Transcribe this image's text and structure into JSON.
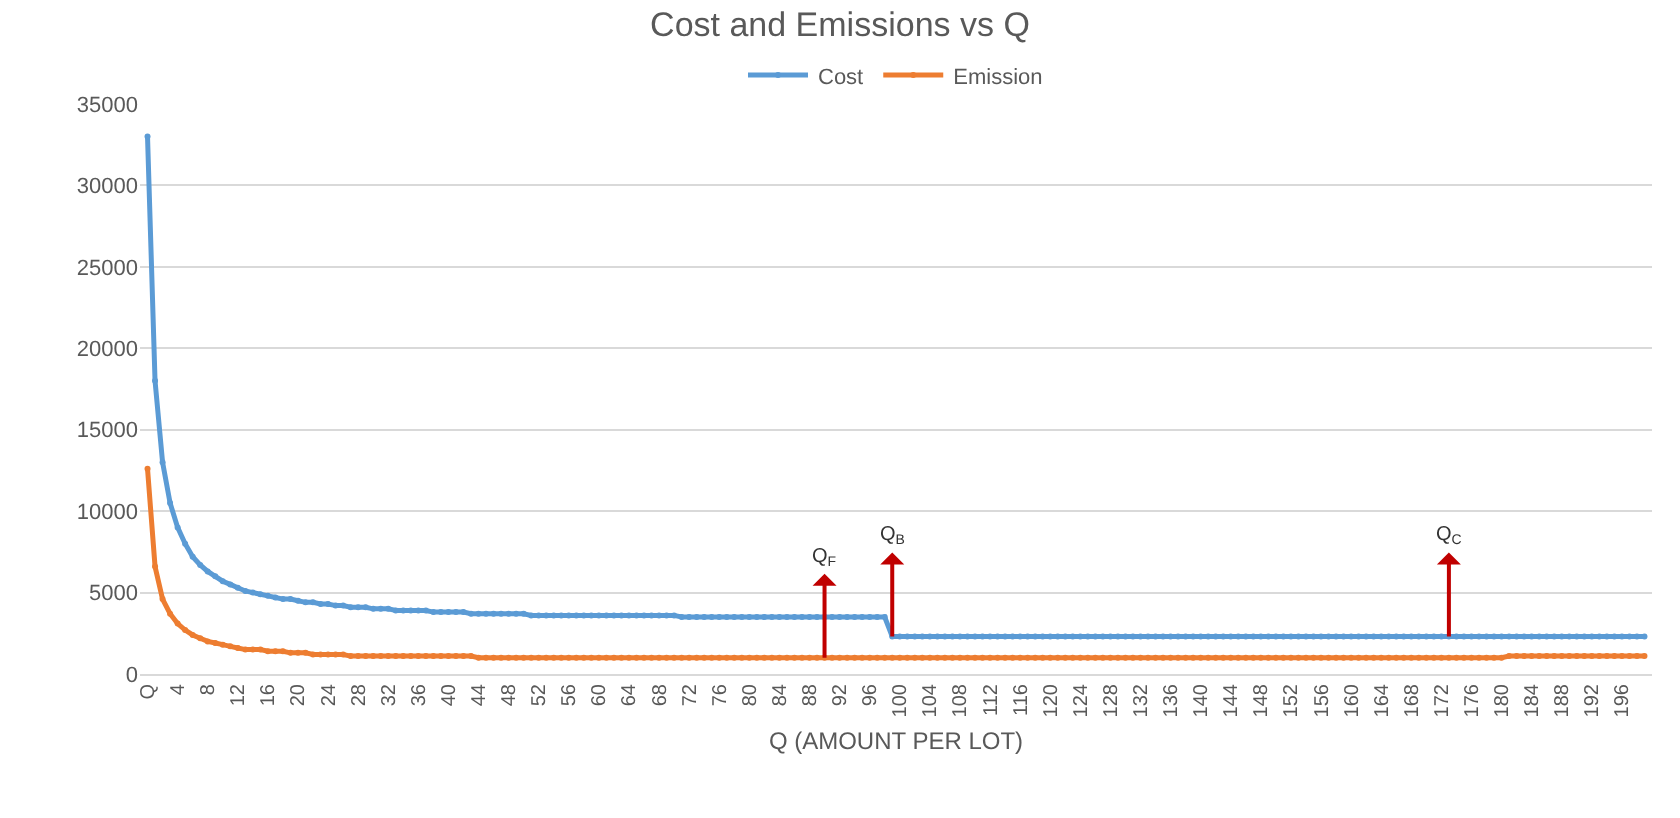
{
  "chart_data": {
    "type": "line",
    "title": "Cost and Emissions vs Q",
    "xlabel": "Q (AMOUNT PER LOT)",
    "x": [
      0,
      1,
      2,
      3,
      4,
      5,
      6,
      7,
      8,
      9,
      10,
      11,
      12,
      13,
      14,
      15,
      16,
      17,
      18,
      19,
      20,
      21,
      22,
      23,
      24,
      25,
      26,
      27,
      28,
      29,
      30,
      31,
      32,
      33,
      34,
      35,
      36,
      37,
      38,
      39,
      40,
      41,
      42,
      43,
      44,
      45,
      46,
      47,
      48,
      49,
      50,
      51,
      52,
      53,
      54,
      55,
      56,
      57,
      58,
      59,
      60,
      61,
      62,
      63,
      64,
      65,
      66,
      67,
      68,
      69,
      70,
      71,
      72,
      73,
      74,
      75,
      76,
      77,
      78,
      79,
      80,
      81,
      82,
      83,
      84,
      85,
      86,
      87,
      88,
      89,
      90,
      91,
      92,
      93,
      94,
      95,
      96,
      97,
      98,
      99,
      100,
      101,
      102,
      103,
      104,
      105,
      106,
      107,
      108,
      109,
      110,
      111,
      112,
      113,
      114,
      115,
      116,
      117,
      118,
      119,
      120,
      121,
      122,
      123,
      124,
      125,
      126,
      127,
      128,
      129,
      130,
      131,
      132,
      133,
      134,
      135,
      136,
      137,
      138,
      139,
      140,
      141,
      142,
      143,
      144,
      145,
      146,
      147,
      148,
      149,
      150,
      151,
      152,
      153,
      154,
      155,
      156,
      157,
      158,
      159,
      160,
      161,
      162,
      163,
      164,
      165,
      166,
      167,
      168,
      169,
      170,
      171,
      172,
      173,
      174,
      175,
      176,
      177,
      178,
      179,
      180,
      181,
      182,
      183,
      184,
      185,
      186,
      187,
      188,
      189,
      190,
      191,
      192,
      193,
      194,
      195,
      196,
      197,
      198,
      199
    ],
    "series": [
      {
        "name": "Cost",
        "color": "#5b9bd5",
        "values": [
          33000,
          18000,
          13000,
          10500,
          9000,
          8000,
          7200,
          6700,
          6300,
          6000,
          5700,
          5500,
          5300,
          5100,
          5000,
          4900,
          4800,
          4700,
          4600,
          4600,
          4500,
          4400,
          4400,
          4300,
          4300,
          4200,
          4200,
          4100,
          4100,
          4100,
          4000,
          4000,
          4000,
          3900,
          3900,
          3900,
          3900,
          3900,
          3800,
          3800,
          3800,
          3800,
          3800,
          3700,
          3700,
          3700,
          3700,
          3700,
          3700,
          3700,
          3700,
          3600,
          3600,
          3600,
          3600,
          3600,
          3600,
          3600,
          3600,
          3600,
          3600,
          3600,
          3600,
          3600,
          3600,
          3600,
          3600,
          3600,
          3600,
          3600,
          3600,
          3500,
          3500,
          3500,
          3500,
          3500,
          3500,
          3500,
          3500,
          3500,
          3500,
          3500,
          3500,
          3500,
          3500,
          3500,
          3500,
          3500,
          3500,
          3500,
          3500,
          3500,
          3500,
          3500,
          3500,
          3500,
          3500,
          3500,
          3500,
          2300,
          2300,
          2300,
          2300,
          2300,
          2300,
          2300,
          2300,
          2300,
          2300,
          2300,
          2300,
          2300,
          2300,
          2300,
          2300,
          2300,
          2300,
          2300,
          2300,
          2300,
          2300,
          2300,
          2300,
          2300,
          2300,
          2300,
          2300,
          2300,
          2300,
          2300,
          2300,
          2300,
          2300,
          2300,
          2300,
          2300,
          2300,
          2300,
          2300,
          2300,
          2300,
          2300,
          2300,
          2300,
          2300,
          2300,
          2300,
          2300,
          2300,
          2300,
          2300,
          2300,
          2300,
          2300,
          2300,
          2300,
          2300,
          2300,
          2300,
          2300,
          2300,
          2300,
          2300,
          2300,
          2300,
          2300,
          2300,
          2300,
          2300,
          2300,
          2300,
          2300,
          2300,
          2300,
          2300,
          2300,
          2300,
          2300,
          2300,
          2300,
          2300,
          2300,
          2300,
          2300,
          2300,
          2300,
          2300,
          2300,
          2300,
          2300,
          2300,
          2300,
          2300,
          2300,
          2300,
          2300,
          2300,
          2300,
          2300,
          2300
        ]
      },
      {
        "name": "Emission",
        "color": "#ed7d31",
        "values": [
          12600,
          6600,
          4600,
          3700,
          3100,
          2700,
          2400,
          2200,
          2000,
          1900,
          1800,
          1700,
          1600,
          1500,
          1500,
          1500,
          1400,
          1400,
          1400,
          1300,
          1300,
          1300,
          1200,
          1200,
          1200,
          1200,
          1200,
          1100,
          1100,
          1100,
          1100,
          1100,
          1100,
          1100,
          1100,
          1100,
          1100,
          1100,
          1100,
          1100,
          1100,
          1100,
          1100,
          1100,
          1000,
          1000,
          1000,
          1000,
          1000,
          1000,
          1000,
          1000,
          1000,
          1000,
          1000,
          1000,
          1000,
          1000,
          1000,
          1000,
          1000,
          1000,
          1000,
          1000,
          1000,
          1000,
          1000,
          1000,
          1000,
          1000,
          1000,
          1000,
          1000,
          1000,
          1000,
          1000,
          1000,
          1000,
          1000,
          1000,
          1000,
          1000,
          1000,
          1000,
          1000,
          1000,
          1000,
          1000,
          1000,
          1000,
          1000,
          1000,
          1000,
          1000,
          1000,
          1000,
          1000,
          1000,
          1000,
          1000,
          1000,
          1000,
          1000,
          1000,
          1000,
          1000,
          1000,
          1000,
          1000,
          1000,
          1000,
          1000,
          1000,
          1000,
          1000,
          1000,
          1000,
          1000,
          1000,
          1000,
          1000,
          1000,
          1000,
          1000,
          1000,
          1000,
          1000,
          1000,
          1000,
          1000,
          1000,
          1000,
          1000,
          1000,
          1000,
          1000,
          1000,
          1000,
          1000,
          1000,
          1000,
          1000,
          1000,
          1000,
          1000,
          1000,
          1000,
          1000,
          1000,
          1000,
          1000,
          1000,
          1000,
          1000,
          1000,
          1000,
          1000,
          1000,
          1000,
          1000,
          1000,
          1000,
          1000,
          1000,
          1000,
          1000,
          1000,
          1000,
          1000,
          1000,
          1000,
          1000,
          1000,
          1000,
          1000,
          1000,
          1000,
          1000,
          1000,
          1000,
          1000,
          1100,
          1100,
          1100,
          1100,
          1100,
          1100,
          1100,
          1100,
          1100,
          1100,
          1100,
          1100,
          1100,
          1100,
          1100,
          1100,
          1100,
          1100,
          1100
        ]
      }
    ],
    "xlim": [
      -1,
      200
    ],
    "xticks": [
      {
        "value": 0,
        "label": "Q"
      },
      4,
      8,
      12,
      16,
      20,
      24,
      28,
      32,
      36,
      40,
      44,
      48,
      52,
      56,
      60,
      64,
      68,
      72,
      76,
      80,
      84,
      88,
      92,
      96,
      100,
      104,
      108,
      112,
      116,
      120,
      124,
      128,
      132,
      136,
      140,
      144,
      148,
      152,
      156,
      160,
      164,
      168,
      172,
      176,
      180,
      184,
      188,
      192,
      196
    ],
    "ylim": [
      0,
      35000
    ],
    "yticks": [
      0,
      5000,
      10000,
      15000,
      20000,
      25000,
      30000,
      35000
    ],
    "annotations": [
      {
        "text": "Q$_{F}$",
        "x": 90,
        "y": 1000
      },
      {
        "text": "Q$_{B}$",
        "x": 99,
        "y": 2300
      },
      {
        "text": "Q$_{C}$",
        "x": 173,
        "y": 2300
      }
    ],
    "grid": "y",
    "legend": "top",
    "marker": "circle",
    "line_style": "solid"
  }
}
